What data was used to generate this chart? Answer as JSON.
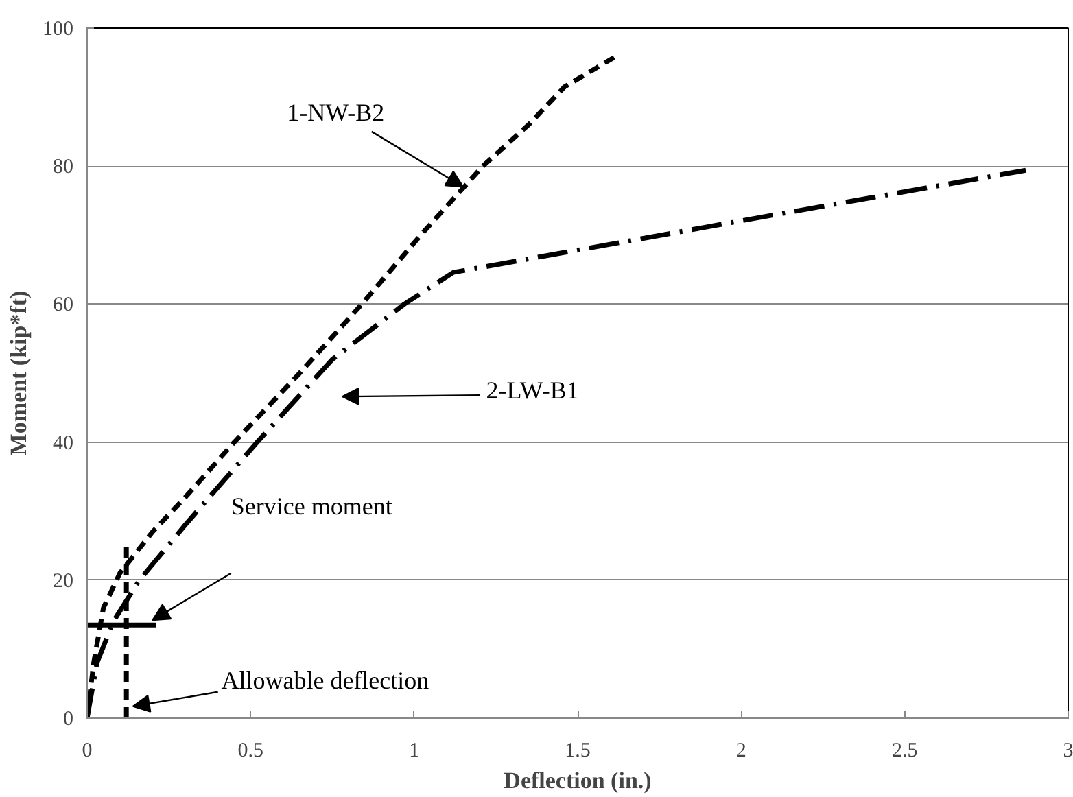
{
  "chart_data": {
    "type": "line",
    "xlabel": "Deflection (in.)",
    "ylabel": "Moment (kip*ft)",
    "xlim": [
      0,
      3
    ],
    "xticks": [
      0,
      0.5,
      1,
      1.5,
      2,
      2.5,
      3
    ],
    "ylim": [
      0,
      100
    ],
    "yticks": [
      0,
      20,
      40,
      60,
      80,
      100
    ],
    "grid": "y",
    "series": [
      {
        "color": "#000000",
        "line_style": "dashed",
        "x": [
          0,
          0.02,
          0.05,
          0.1,
          0.2,
          0.3,
          0.45,
          0.65,
          0.84,
          1.02,
          1.21,
          1.35,
          1.46,
          1.62
        ],
        "values": [
          0,
          8,
          16,
          21,
          27,
          32,
          40,
          50,
          60,
          70,
          80,
          86,
          91.5,
          96
        ]
      },
      {
        "color": "#000000",
        "line_style": "dashdot",
        "x": [
          0,
          0.03,
          0.08,
          0.16,
          0.3,
          0.52,
          0.75,
          0.97,
          1.12,
          2.05,
          2.87
        ],
        "values": [
          0,
          8,
          14,
          20,
          28,
          40,
          52,
          60,
          64.6,
          72.5,
          79.4
        ]
      },
      {
        "color": "#000000",
        "line_style": "solid",
        "x": [
          0,
          0.21
        ],
        "values": [
          13.5,
          13.5
        ]
      },
      {
        "color": "#000000",
        "line_style": "dashed",
        "x": [
          0.12,
          0.12
        ],
        "values": [
          0,
          25
        ]
      }
    ],
    "annotations": [
      {
        "text": "1-NW-B2",
        "x": 1.15,
        "y": 77
      },
      "2-LW-B1",
      "Service moment",
      "Allowable deflection"
    ]
  }
}
